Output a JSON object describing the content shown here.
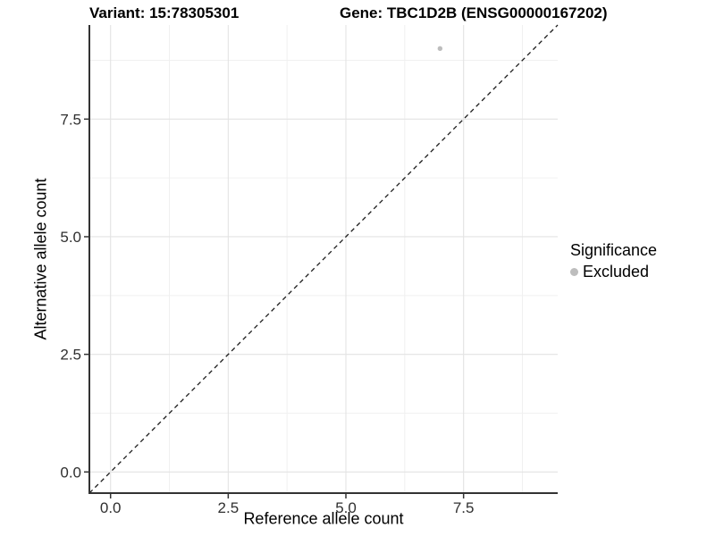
{
  "chart_data": {
    "type": "scatter",
    "title_left": "Variant: 15:78305301",
    "title_right": "Gene: TBC1D2B (ENSG00000167202)",
    "xlabel": "Reference allele count",
    "ylabel": "Alternative allele count",
    "xlim": [
      -0.45,
      9.5
    ],
    "ylim": [
      -0.45,
      9.5
    ],
    "x_tick_values": [
      0,
      2.5,
      5,
      7.5
    ],
    "x_tick_labels": [
      "0.0",
      "2.5",
      "5.0",
      "7.5"
    ],
    "y_tick_values": [
      0,
      2.5,
      5,
      7.5
    ],
    "y_tick_labels": [
      "0.0",
      "2.5",
      "5.0",
      "7.5"
    ],
    "minor_tick_values": [
      1.25,
      3.75,
      6.25,
      8.75
    ],
    "grid": {
      "major": true,
      "minor": true
    },
    "identity_line": {
      "slope": 1,
      "intercept": 0,
      "style": "dashed"
    },
    "series": [
      {
        "name": "Excluded",
        "color": "#bdbdbd",
        "points": [
          {
            "x": 7,
            "y": 9
          }
        ]
      }
    ],
    "legend": {
      "title": "Significance",
      "position": "right",
      "items": [
        {
          "label": "Excluded",
          "color": "#bdbdbd"
        }
      ]
    },
    "colors": {
      "background": "#ffffff",
      "axis_line": "#333333",
      "tick_mark": "#333333",
      "tick_label": "#303030",
      "grid_major": "#e3e3e3",
      "grid_minor": "#f0f0f0",
      "identity_line": "#1a1a1a"
    }
  }
}
